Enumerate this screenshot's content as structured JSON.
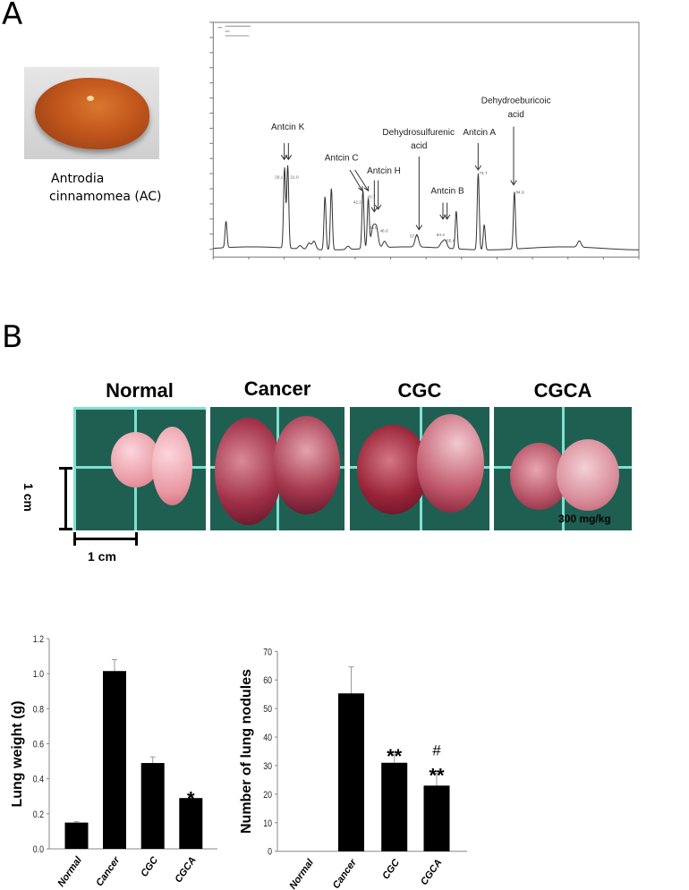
{
  "panel_a": {
    "label": "A",
    "photo_caption_line1": "Antrodia",
    "photo_caption_line2": "cinnamomea (AC)"
  },
  "panel_b": {
    "label": "B",
    "groups": [
      "Normal",
      "Cancer",
      "CGC",
      "CGCA"
    ],
    "dose_label": "300 mg/kg",
    "scale_vertical": "1 cm",
    "scale_horizontal": "1 cm"
  },
  "chart_data": [
    {
      "type": "line",
      "xlim": [
        0,
        120
      ],
      "ylim": [
        0,
        1500
      ],
      "grid": false,
      "peaks": [
        {
          "rt": 3.6,
          "height": 174
        },
        {
          "rt": 20.1,
          "height": 529
        },
        {
          "rt": 21.0,
          "height": 545
        },
        {
          "rt": 24.5,
          "height": 22
        },
        {
          "rt": 27.0,
          "height": 41
        },
        {
          "rt": 28.4,
          "height": 55
        },
        {
          "rt": 31.5,
          "height": 351
        },
        {
          "rt": 33.3,
          "height": 406
        },
        {
          "rt": 38.0,
          "height": 22
        },
        {
          "rt": 42.2,
          "height": 387
        },
        {
          "rt": 43.7,
          "height": 327
        },
        {
          "rt": 45.0,
          "height": 130
        },
        {
          "rt": 46.0,
          "height": 130
        },
        {
          "rt": 48.3,
          "height": 41
        },
        {
          "rt": 57.4,
          "height": 81
        },
        {
          "rt": 64.4,
          "height": 32
        },
        {
          "rt": 65.4,
          "height": 51
        },
        {
          "rt": 68.5,
          "height": 249
        },
        {
          "rt": 74.7,
          "height": 505
        },
        {
          "rt": 76.4,
          "height": 166
        },
        {
          "rt": 84.9,
          "height": 377
        },
        {
          "rt": 103.2,
          "height": 41
        }
      ],
      "peak_labels": [
        "20.1",
        "21.0",
        "42.2",
        "43.7",
        "45.0",
        "46.0",
        "57.4",
        "64.4",
        "65.4",
        "74.7",
        "84.9"
      ],
      "annotations": {
        "antcin_k": "Antcin K",
        "antcin_c": "Antcin C",
        "antcin_h": "Antcin H",
        "dehydrosulfurenic_1": "Dehydrosulfurenic",
        "dehydrosulfurenic_2": "acid",
        "antcin_b": "Antcin B",
        "antcin_a": "Antcin A",
        "dehydroeburicoic_1": "Dehydroeburicoic",
        "dehydroeburicoic_2": "acid"
      }
    },
    {
      "type": "bar",
      "categories": [
        "Normal",
        "Cancer",
        "CGC",
        "CGCA"
      ],
      "values": [
        0.15,
        1.015,
        0.49,
        0.29
      ],
      "errors": [
        0.005,
        0.065,
        0.035,
        0.01
      ],
      "significance": [
        "",
        "",
        "",
        "*"
      ],
      "ylabel": "Lung weight (g)",
      "xlabel": "",
      "ylim": [
        0,
        1.2
      ],
      "yticks": [
        "0.0",
        "0.2",
        "0.4",
        "0.6",
        "0.8",
        "1.0",
        "1.2"
      ],
      "color": "#000000"
    },
    {
      "type": "bar",
      "categories": [
        "Normal",
        "Cancer",
        "CGC",
        "CGCA"
      ],
      "values": [
        0,
        55.3,
        31,
        23
      ],
      "errors": [
        0,
        9.3,
        3,
        4.3
      ],
      "significance": [
        "",
        "",
        "**",
        "**"
      ],
      "significance_hash": [
        "",
        "",
        "",
        "#"
      ],
      "ylabel": "Number of lung nodules",
      "xlabel": "",
      "ylim": [
        0,
        70
      ],
      "yticks": [
        "0",
        "10",
        "20",
        "30",
        "40",
        "50",
        "60",
        "70"
      ],
      "color": "#000000"
    }
  ]
}
